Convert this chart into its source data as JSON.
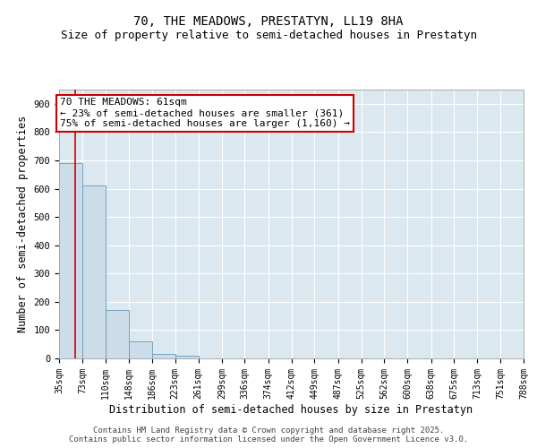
{
  "title": "70, THE MEADOWS, PRESTATYN, LL19 8HA",
  "subtitle": "Size of property relative to semi-detached houses in Prestatyn",
  "xlabel": "Distribution of semi-detached houses by size in Prestatyn",
  "ylabel": "Number of semi-detached properties",
  "bin_edges": [
    35,
    73,
    110,
    148,
    186,
    223,
    261,
    299,
    336,
    374,
    412,
    449,
    487,
    525,
    562,
    600,
    638,
    675,
    713,
    751,
    788
  ],
  "bar_heights": [
    690,
    610,
    170,
    60,
    15,
    8,
    0,
    0,
    0,
    0,
    0,
    0,
    0,
    0,
    0,
    0,
    0,
    0,
    0,
    0
  ],
  "bar_color": "#ccdce8",
  "bar_edge_color": "#6699bb",
  "property_size": 61,
  "vline_color": "#cc0000",
  "annotation_line1": "70 THE MEADOWS: 61sqm",
  "annotation_line2": "← 23% of semi-detached houses are smaller (361)",
  "annotation_line3": "75% of semi-detached houses are larger (1,160) →",
  "annotation_box_color": "#ffffff",
  "annotation_box_edge_color": "#cc0000",
  "ylim": [
    0,
    950
  ],
  "yticks": [
    0,
    100,
    200,
    300,
    400,
    500,
    600,
    700,
    800,
    900
  ],
  "background_color": "#dce8f0",
  "grid_color": "#ffffff",
  "footer_text": "Contains HM Land Registry data © Crown copyright and database right 2025.\nContains public sector information licensed under the Open Government Licence v3.0.",
  "title_fontsize": 10,
  "subtitle_fontsize": 9,
  "tick_label_fontsize": 7,
  "axis_label_fontsize": 8.5,
  "annotation_fontsize": 8,
  "footer_fontsize": 6.5
}
